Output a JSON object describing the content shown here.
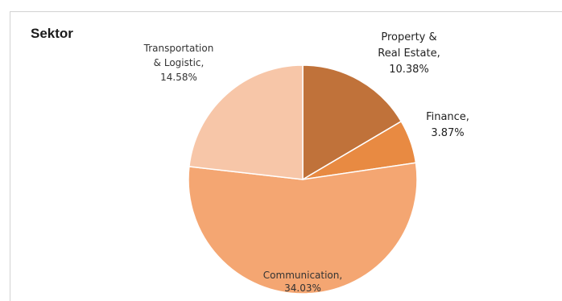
{
  "chart_data": {
    "type": "pie",
    "title": "Sektor",
    "slices": [
      {
        "name": "Property & Real Estate",
        "value": 10.38,
        "color": "#c0723a",
        "label_lines": [
          "Property &",
          "Real Estate,",
          "10.38%"
        ]
      },
      {
        "name": "Finance",
        "value": 3.87,
        "color": "#e88a42",
        "label_lines": [
          "Finance,",
          "3.87%"
        ]
      },
      {
        "name": "Communication",
        "value": 34.03,
        "color": "#f4a672",
        "label_lines": [
          "Communication,",
          "34.03%"
        ]
      },
      {
        "name": "Transportation & Logistic",
        "value": 14.58,
        "color": "#f7c6a8",
        "label_lines": [
          "Transportation",
          "& Logistic,",
          "14.58%"
        ]
      }
    ],
    "slice_border_color": "#ffffff",
    "legend": "none"
  }
}
